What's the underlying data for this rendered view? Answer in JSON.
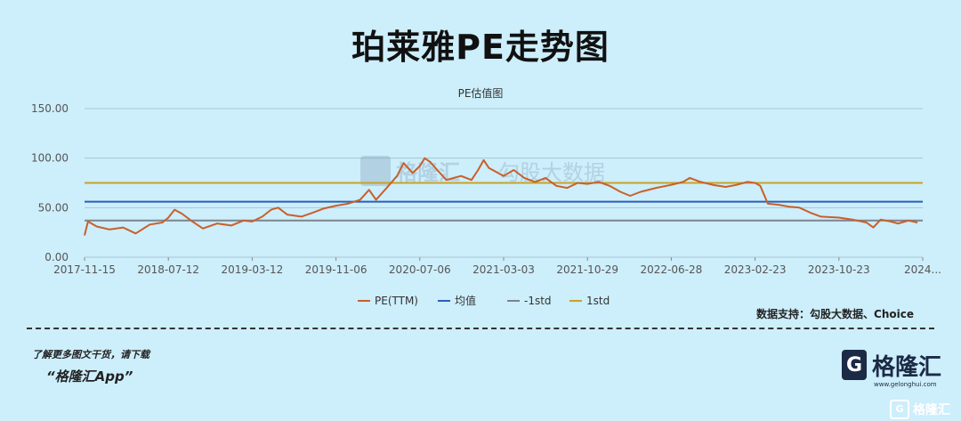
{
  "headline": "珀莱雅PE走势图",
  "source_note": "数据支持：勾股大数据、Choice",
  "watermark": {
    "logo": "格隆汇",
    "text": "勾股大数据"
  },
  "promo": {
    "line1": "了解更多图文干货，请下载",
    "line2": "“格隆汇App”"
  },
  "brand": {
    "name": "格隆汇",
    "url": "www.gelonghui.com"
  },
  "corner_badge": "格隆汇",
  "colors": {
    "background": "#cdeefb",
    "pe": "#c8602a",
    "mean": "#2b5fb8",
    "minus_std": "#7d838c",
    "plus_std": "#c9a227"
  },
  "chart_data": {
    "type": "line",
    "title": "PE估值图",
    "ylim": [
      0,
      150
    ],
    "yticks": [
      "0.00",
      "50.00",
      "100.00",
      "150.00"
    ],
    "xticks": [
      "2017-11-15",
      "2018-07-12",
      "2019-03-12",
      "2019-11-06",
      "2020-07-06",
      "2021-03-03",
      "2021-10-29",
      "2022-06-28",
      "2023-02-23",
      "2023-10-23",
      "2024..."
    ],
    "grid": true,
    "legend_position": "bottom",
    "series": [
      {
        "name": "PE(TTM)",
        "kind": "line",
        "points": [
          [
            "2017-11-15",
            22
          ],
          [
            "2017-11-25",
            36
          ],
          [
            "2017-12-20",
            31
          ],
          [
            "2018-01-25",
            28
          ],
          [
            "2018-03-05",
            30
          ],
          [
            "2018-04-10",
            24
          ],
          [
            "2018-05-20",
            33
          ],
          [
            "2018-06-25",
            35
          ],
          [
            "2018-07-12",
            40
          ],
          [
            "2018-07-30",
            48
          ],
          [
            "2018-08-20",
            44
          ],
          [
            "2018-09-20",
            36
          ],
          [
            "2018-10-20",
            29
          ],
          [
            "2018-12-01",
            34
          ],
          [
            "2019-01-10",
            32
          ],
          [
            "2019-02-15",
            37
          ],
          [
            "2019-03-12",
            36
          ],
          [
            "2019-04-10",
            41
          ],
          [
            "2019-05-05",
            48
          ],
          [
            "2019-05-25",
            50
          ],
          [
            "2019-06-20",
            43
          ],
          [
            "2019-07-30",
            41
          ],
          [
            "2019-09-01",
            45
          ],
          [
            "2019-10-01",
            49
          ],
          [
            "2019-11-06",
            52
          ],
          [
            "2019-12-10",
            54
          ],
          [
            "2020-01-15",
            58
          ],
          [
            "2020-02-10",
            68
          ],
          [
            "2020-03-01",
            58
          ],
          [
            "2020-04-01",
            70
          ],
          [
            "2020-05-01",
            82
          ],
          [
            "2020-05-20",
            95
          ],
          [
            "2020-06-15",
            85
          ],
          [
            "2020-07-06",
            92
          ],
          [
            "2020-07-20",
            100
          ],
          [
            "2020-08-05",
            96
          ],
          [
            "2020-08-25",
            88
          ],
          [
            "2020-09-20",
            78
          ],
          [
            "2020-11-01",
            82
          ],
          [
            "2020-12-01",
            78
          ],
          [
            "2020-12-20",
            88
          ],
          [
            "2021-01-05",
            98
          ],
          [
            "2021-01-20",
            90
          ],
          [
            "2021-02-10",
            86
          ],
          [
            "2021-03-03",
            82
          ],
          [
            "2021-04-01",
            88
          ],
          [
            "2021-05-01",
            80
          ],
          [
            "2021-06-01",
            76
          ],
          [
            "2021-07-01",
            80
          ],
          [
            "2021-08-01",
            72
          ],
          [
            "2021-09-01",
            70
          ],
          [
            "2021-10-01",
            75
          ],
          [
            "2021-10-29",
            74
          ],
          [
            "2021-12-01",
            76
          ],
          [
            "2022-01-01",
            72
          ],
          [
            "2022-02-01",
            66
          ],
          [
            "2022-03-01",
            62
          ],
          [
            "2022-04-01",
            66
          ],
          [
            "2022-05-15",
            70
          ],
          [
            "2022-06-28",
            73
          ],
          [
            "2022-08-01",
            76
          ],
          [
            "2022-08-20",
            80
          ],
          [
            "2022-09-20",
            76
          ],
          [
            "2022-10-25",
            73
          ],
          [
            "2022-12-01",
            71
          ],
          [
            "2023-01-01",
            73
          ],
          [
            "2023-02-01",
            76
          ],
          [
            "2023-02-23",
            75
          ],
          [
            "2023-03-10",
            72
          ],
          [
            "2023-04-01",
            54
          ],
          [
            "2023-05-01",
            53
          ],
          [
            "2023-06-01",
            51
          ],
          [
            "2023-07-01",
            50
          ],
          [
            "2023-08-01",
            45
          ],
          [
            "2023-09-01",
            41
          ],
          [
            "2023-10-23",
            40
          ],
          [
            "2023-12-01",
            38
          ],
          [
            "2024-01-10",
            35
          ],
          [
            "2024-01-30",
            30
          ],
          [
            "2024-02-20",
            38
          ],
          [
            "2024-03-20",
            36
          ],
          [
            "2024-04-10",
            34
          ],
          [
            "2024-05-10",
            37
          ],
          [
            "2024-06-05",
            35
          ]
        ]
      },
      {
        "name": "均值",
        "kind": "hline",
        "value": 56
      },
      {
        "name": "-1std",
        "kind": "hline",
        "value": 37
      },
      {
        "name": "1std",
        "kind": "hline",
        "value": 75
      }
    ]
  }
}
